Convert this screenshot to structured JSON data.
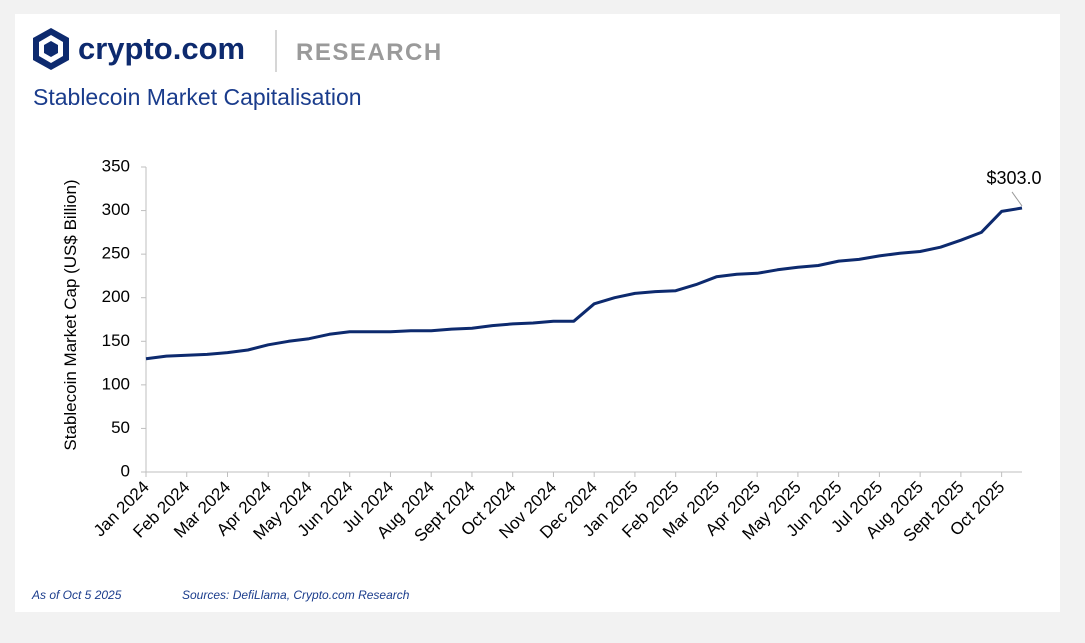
{
  "header": {
    "brand": "crypto.com",
    "section": "RESEARCH"
  },
  "chart_data": {
    "type": "line",
    "title": "Stablecoin Market Capitalisation",
    "y_label": "Stablecoin Market Cap (US$ Billion)",
    "categories": [
      "Jan 2024",
      null,
      "Feb 2024",
      null,
      "Mar 2024",
      null,
      "Apr 2024",
      null,
      "May 2024",
      null,
      "Jun 2024",
      null,
      "Jul 2024",
      null,
      "Aug 2024",
      null,
      "Sept 2024",
      null,
      "Oct 2024",
      null,
      "Nov 2024",
      null,
      "Dec 2024",
      null,
      "Jan 2025",
      null,
      "Feb 2025",
      null,
      "Mar 2025",
      null,
      "Apr 2025",
      null,
      "May 2025",
      null,
      "Jun 2025",
      null,
      "Jul 2025",
      null,
      "Aug 2025",
      null,
      "Sept 2025",
      null,
      "Oct 2025",
      null
    ],
    "series": [
      {
        "name": "Stablecoin Market Cap",
        "color": "#0d2a6e",
        "values": [
          130,
          133,
          134,
          135,
          137,
          140,
          146,
          150,
          153,
          158,
          161,
          161,
          161,
          162,
          162,
          164,
          165,
          168,
          170,
          171,
          173,
          173,
          193,
          200,
          205,
          207,
          208,
          215,
          224,
          227,
          228,
          232,
          235,
          237,
          242,
          244,
          248,
          251,
          253,
          258,
          266,
          275,
          299,
          303
        ],
        "value_labels": [
          null,
          null,
          null,
          null,
          null,
          null,
          null,
          null,
          null,
          null,
          null,
          null,
          null,
          null,
          null,
          null,
          null,
          null,
          null,
          null,
          null,
          null,
          null,
          null,
          null,
          null,
          null,
          null,
          null,
          null,
          null,
          null,
          null,
          null,
          null,
          null,
          null,
          null,
          null,
          null,
          null,
          null,
          null,
          "$303.0"
        ]
      }
    ],
    "ylim": [
      0,
      350
    ],
    "yticks": [
      0,
      50,
      100,
      150,
      200,
      250,
      300,
      350
    ],
    "grid": false
  },
  "footer": {
    "as_of": "As of Oct 5 2025",
    "sources": "Sources: DefiLlama, Crypto.com Research"
  }
}
